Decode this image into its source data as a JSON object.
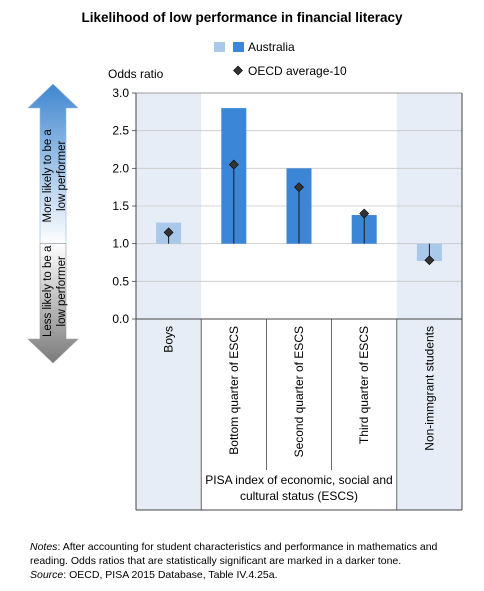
{
  "chart_data": {
    "type": "bar",
    "title": "Likelihood of low performance in financial literacy",
    "ylabel": "Odds ratio",
    "ylim": [
      0,
      3
    ],
    "yticks": [
      "0.0",
      "0.5",
      "1.0",
      "1.5",
      "2.0",
      "2.5",
      "3.0"
    ],
    "baseline": 1.0,
    "categories": [
      "Boys",
      "Bottom quarter of ESCS",
      "Second quarter of ESCS",
      "Third quarter of ESCS",
      "Non-immgrant students"
    ],
    "category_group": {
      "label": "PISA index of economic, social and cultural status (ESCS)",
      "members": [
        1,
        2,
        3
      ]
    },
    "series": [
      {
        "name": "Australia",
        "values": [
          1.28,
          2.8,
          2.0,
          1.38,
          0.77
        ],
        "significant": [
          false,
          true,
          true,
          true,
          false
        ],
        "color_significant": "#3c86d8",
        "color_not_significant": "#a9c8ea"
      },
      {
        "name": "OECD average-10",
        "values": [
          1.15,
          2.05,
          1.75,
          1.4,
          0.78
        ],
        "marker": "diamond",
        "color": "#1a1a1a"
      }
    ],
    "shaded_columns": [
      0,
      4
    ],
    "shade_color": "#e6edf6",
    "arrows": {
      "up_label": "More likely to be a low performer",
      "down_label": "Less likely to be a low performer",
      "up_color": "#3f86cf",
      "down_color": "#7a7a7a"
    },
    "grid": true,
    "legend_position": "top"
  },
  "notes": {
    "notes_label": "Notes",
    "notes_text": ": After accounting for student characteristics and performance in mathematics and reading. Odds ratios that are statistically significant are marked in a darker tone.",
    "source_label": "Source",
    "source_text": ": OECD, PISA 2015 Database, Table IV.4.25a."
  }
}
